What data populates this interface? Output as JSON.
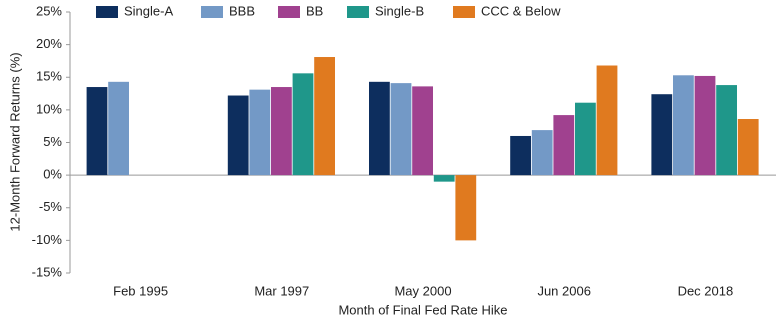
{
  "chart_data": {
    "type": "bar",
    "y_label": "12-Month Forward Returns (%)",
    "x_label": "Month of Final Fed Rate Hike",
    "categories": [
      "Feb 1995",
      "Mar 1997",
      "May 2000",
      "Jun 2006",
      "Dec 2018"
    ],
    "series": [
      {
        "name": "Single-A",
        "color": "#0d2e5e",
        "values": [
          13.5,
          12.2,
          14.3,
          6.0,
          12.4
        ]
      },
      {
        "name": "BBB",
        "color": "#7399c6",
        "values": [
          14.3,
          13.1,
          14.1,
          6.9,
          15.3
        ]
      },
      {
        "name": "BB",
        "color": "#a0418f",
        "values": [
          null,
          13.5,
          13.6,
          9.2,
          15.2
        ]
      },
      {
        "name": "Single-B",
        "color": "#1f978a",
        "values": [
          null,
          15.6,
          -1.0,
          11.1,
          13.8
        ]
      },
      {
        "name": "CCC & Below",
        "color": "#e07a1f",
        "values": [
          null,
          18.1,
          -10.0,
          16.8,
          8.6
        ]
      }
    ],
    "ylim": [
      -15,
      25
    ],
    "yticks": [
      {
        "value": -15,
        "label": "-15%"
      },
      {
        "value": -10,
        "label": "-10%"
      },
      {
        "value": -5,
        "label": "-5%"
      },
      {
        "value": 0,
        "label": "0%"
      },
      {
        "value": 5,
        "label": "5%"
      },
      {
        "value": 10,
        "label": "10%"
      },
      {
        "value": 15,
        "label": "15%"
      },
      {
        "value": 20,
        "label": "20%"
      },
      {
        "value": 25,
        "label": "25%"
      }
    ],
    "legend": "top"
  }
}
